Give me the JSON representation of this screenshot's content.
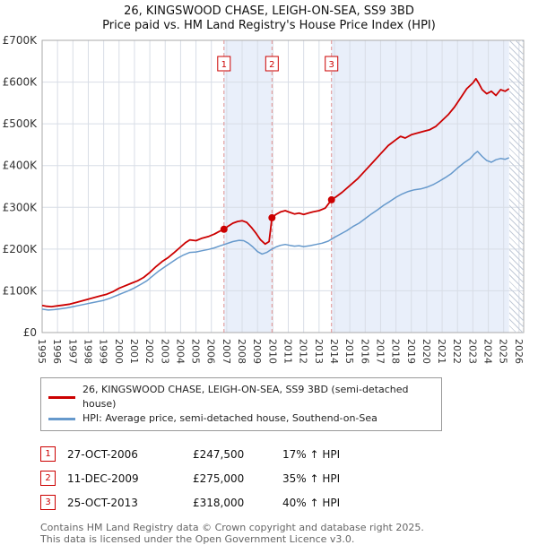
{
  "title": {
    "line1": "26, KINGSWOOD CHASE, LEIGH-ON-SEA, SS9 3BD",
    "line2": "Price paid vs. HM Land Registry's House Price Index (HPI)"
  },
  "chart_data": {
    "type": "line",
    "x_range": [
      1995,
      2026.3
    ],
    "ylim": [
      0,
      700000
    ],
    "points_unit": "GBP thousands, x = decimal year",
    "y_ticks": [
      {
        "label": "£0",
        "value": 0
      },
      {
        "label": "£100K",
        "value": 100000
      },
      {
        "label": "£200K",
        "value": 200000
      },
      {
        "label": "£300K",
        "value": 300000
      },
      {
        "label": "£400K",
        "value": 400000
      },
      {
        "label": "£500K",
        "value": 500000
      },
      {
        "label": "£600K",
        "value": 600000
      },
      {
        "label": "£700K",
        "value": 700000
      }
    ],
    "x_ticks": [
      1995,
      1996,
      1997,
      1998,
      1999,
      2000,
      2001,
      2002,
      2003,
      2004,
      2005,
      2006,
      2007,
      2008,
      2009,
      2010,
      2011,
      2012,
      2013,
      2014,
      2015,
      2016,
      2017,
      2018,
      2019,
      2020,
      2021,
      2022,
      2023,
      2024,
      2025,
      2026
    ],
    "colors": {
      "price_line": "#cc0000",
      "hpi_line": "#6699cc",
      "shade": "#e9effa",
      "grid": "#d8dde6",
      "sale_line": "#e09090",
      "plot_border": "#aaaaaa"
    },
    "series": [
      {
        "name": "26, KINGSWOOD CHASE, LEIGH-ON-SEA, SS9 3BD (semi-detached house)",
        "color": "#cc0000",
        "points": [
          [
            1995,
            65
          ],
          [
            1995.3,
            63
          ],
          [
            1995.6,
            62
          ],
          [
            1996,
            64
          ],
          [
            1996.4,
            66
          ],
          [
            1996.8,
            68
          ],
          [
            1997.2,
            72
          ],
          [
            1997.6,
            76
          ],
          [
            1998,
            80
          ],
          [
            1998.4,
            84
          ],
          [
            1998.8,
            88
          ],
          [
            1999.2,
            92
          ],
          [
            1999.6,
            98
          ],
          [
            2000,
            106
          ],
          [
            2000.4,
            112
          ],
          [
            2000.8,
            118
          ],
          [
            2001.2,
            124
          ],
          [
            2001.6,
            132
          ],
          [
            2002,
            144
          ],
          [
            2002.4,
            158
          ],
          [
            2002.8,
            170
          ],
          [
            2003.2,
            180
          ],
          [
            2003.6,
            192
          ],
          [
            2004,
            205
          ],
          [
            2004.3,
            215
          ],
          [
            2004.6,
            222
          ],
          [
            2005,
            220
          ],
          [
            2005.4,
            226
          ],
          [
            2005.8,
            230
          ],
          [
            2006.2,
            236
          ],
          [
            2006.5,
            242
          ],
          [
            2006.82,
            247.5
          ],
          [
            2007.1,
            255
          ],
          [
            2007.4,
            262
          ],
          [
            2007.7,
            266
          ],
          [
            2008,
            268
          ],
          [
            2008.3,
            264
          ],
          [
            2008.6,
            252
          ],
          [
            2008.9,
            238
          ],
          [
            2009.2,
            222
          ],
          [
            2009.5,
            212
          ],
          [
            2009.75,
            218
          ],
          [
            2009.94,
            275
          ],
          [
            2010.2,
            283
          ],
          [
            2010.5,
            289
          ],
          [
            2010.8,
            292
          ],
          [
            2011.1,
            288
          ],
          [
            2011.4,
            284
          ],
          [
            2011.7,
            286
          ],
          [
            2012,
            283
          ],
          [
            2012.3,
            286
          ],
          [
            2012.6,
            289
          ],
          [
            2013,
            292
          ],
          [
            2013.4,
            298
          ],
          [
            2013.81,
            318
          ],
          [
            2014.1,
            325
          ],
          [
            2014.5,
            336
          ],
          [
            2015,
            352
          ],
          [
            2015.5,
            368
          ],
          [
            2016,
            388
          ],
          [
            2016.5,
            408
          ],
          [
            2017,
            428
          ],
          [
            2017.5,
            448
          ],
          [
            2018,
            462
          ],
          [
            2018.3,
            470
          ],
          [
            2018.6,
            466
          ],
          [
            2019,
            474
          ],
          [
            2019.4,
            478
          ],
          [
            2019.8,
            482
          ],
          [
            2020.2,
            486
          ],
          [
            2020.6,
            494
          ],
          [
            2021,
            508
          ],
          [
            2021.4,
            522
          ],
          [
            2021.8,
            540
          ],
          [
            2022.2,
            562
          ],
          [
            2022.6,
            584
          ],
          [
            2023,
            598
          ],
          [
            2023.2,
            608
          ],
          [
            2023.4,
            596
          ],
          [
            2023.6,
            582
          ],
          [
            2023.9,
            572
          ],
          [
            2024.2,
            578
          ],
          [
            2024.5,
            568
          ],
          [
            2024.8,
            582
          ],
          [
            2025.1,
            578
          ],
          [
            2025.35,
            584
          ]
        ]
      },
      {
        "name": "HPI: Average price, semi-detached house, Southend-on-Sea",
        "color": "#6699cc",
        "points": [
          [
            1995,
            56
          ],
          [
            1995.4,
            54
          ],
          [
            1995.8,
            55
          ],
          [
            1996.2,
            57
          ],
          [
            1996.6,
            59
          ],
          [
            1997,
            62
          ],
          [
            1997.4,
            65
          ],
          [
            1997.8,
            68
          ],
          [
            1998.2,
            71
          ],
          [
            1998.6,
            74
          ],
          [
            1999,
            77
          ],
          [
            1999.4,
            82
          ],
          [
            1999.8,
            88
          ],
          [
            2000.2,
            94
          ],
          [
            2000.6,
            100
          ],
          [
            2001,
            107
          ],
          [
            2001.4,
            115
          ],
          [
            2001.8,
            124
          ],
          [
            2002.2,
            136
          ],
          [
            2002.6,
            148
          ],
          [
            2003,
            158
          ],
          [
            2003.4,
            168
          ],
          [
            2003.8,
            178
          ],
          [
            2004.2,
            186
          ],
          [
            2004.6,
            192
          ],
          [
            2005,
            193
          ],
          [
            2005.4,
            196
          ],
          [
            2005.8,
            199
          ],
          [
            2006.2,
            203
          ],
          [
            2006.6,
            208
          ],
          [
            2007,
            213
          ],
          [
            2007.4,
            218
          ],
          [
            2007.8,
            221
          ],
          [
            2008.1,
            220
          ],
          [
            2008.4,
            214
          ],
          [
            2008.7,
            205
          ],
          [
            2009,
            194
          ],
          [
            2009.3,
            188
          ],
          [
            2009.6,
            192
          ],
          [
            2009.9,
            199
          ],
          [
            2010.2,
            205
          ],
          [
            2010.5,
            209
          ],
          [
            2010.8,
            211
          ],
          [
            2011.1,
            209
          ],
          [
            2011.4,
            207
          ],
          [
            2011.7,
            208
          ],
          [
            2012,
            206
          ],
          [
            2012.4,
            208
          ],
          [
            2012.8,
            211
          ],
          [
            2013.2,
            214
          ],
          [
            2013.6,
            219
          ],
          [
            2014,
            228
          ],
          [
            2014.4,
            236
          ],
          [
            2014.8,
            244
          ],
          [
            2015.2,
            254
          ],
          [
            2015.6,
            262
          ],
          [
            2016,
            273
          ],
          [
            2016.4,
            284
          ],
          [
            2016.8,
            294
          ],
          [
            2017.2,
            305
          ],
          [
            2017.6,
            314
          ],
          [
            2018,
            324
          ],
          [
            2018.4,
            332
          ],
          [
            2018.8,
            338
          ],
          [
            2019.2,
            342
          ],
          [
            2019.6,
            344
          ],
          [
            2020,
            348
          ],
          [
            2020.4,
            354
          ],
          [
            2020.8,
            362
          ],
          [
            2021.2,
            371
          ],
          [
            2021.6,
            381
          ],
          [
            2022,
            394
          ],
          [
            2022.4,
            406
          ],
          [
            2022.8,
            416
          ],
          [
            2023.1,
            428
          ],
          [
            2023.3,
            434
          ],
          [
            2023.6,
            422
          ],
          [
            2023.9,
            412
          ],
          [
            2024.2,
            408
          ],
          [
            2024.5,
            414
          ],
          [
            2024.8,
            417
          ],
          [
            2025.1,
            415
          ],
          [
            2025.35,
            419
          ]
        ]
      }
    ],
    "sales": [
      {
        "num": "1",
        "x": 2006.82,
        "price": 247500
      },
      {
        "num": "2",
        "x": 2009.94,
        "price": 275000
      },
      {
        "num": "3",
        "x": 2013.81,
        "price": 318000
      }
    ],
    "shaded_regions": [
      [
        2006.82,
        2009.94
      ],
      [
        2013.81,
        2025.35
      ]
    ],
    "hatched_region": [
      2025.35,
      2026.3
    ]
  },
  "transactions": [
    {
      "num": "1",
      "date": "27-OCT-2006",
      "price": "£247,500",
      "hpi": "17% ↑ HPI"
    },
    {
      "num": "2",
      "date": "11-DEC-2009",
      "price": "£275,000",
      "hpi": "35% ↑ HPI"
    },
    {
      "num": "3",
      "date": "25-OCT-2013",
      "price": "£318,000",
      "hpi": "40% ↑ HPI"
    }
  ],
  "footer": {
    "line1": "Contains HM Land Registry data © Crown copyright and database right 2025.",
    "line2": "This data is licensed under the Open Government Licence v3.0."
  }
}
